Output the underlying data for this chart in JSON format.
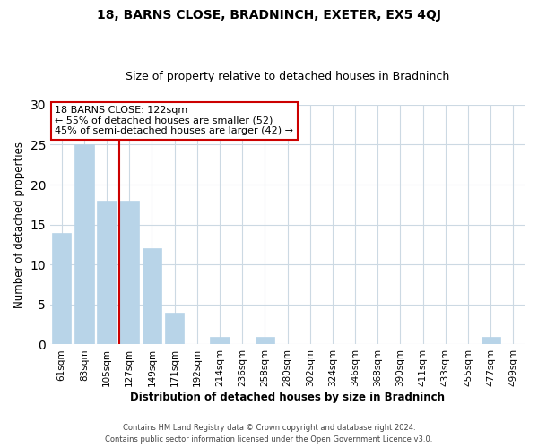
{
  "title": "18, BARNS CLOSE, BRADNINCH, EXETER, EX5 4QJ",
  "subtitle": "Size of property relative to detached houses in Bradninch",
  "xlabel": "Distribution of detached houses by size in Bradninch",
  "ylabel": "Number of detached properties",
  "footer_line1": "Contains HM Land Registry data © Crown copyright and database right 2024.",
  "footer_line2": "Contains public sector information licensed under the Open Government Licence v3.0.",
  "bin_labels": [
    "61sqm",
    "83sqm",
    "105sqm",
    "127sqm",
    "149sqm",
    "171sqm",
    "192sqm",
    "214sqm",
    "236sqm",
    "258sqm",
    "280sqm",
    "302sqm",
    "324sqm",
    "346sqm",
    "368sqm",
    "390sqm",
    "411sqm",
    "433sqm",
    "455sqm",
    "477sqm",
    "499sqm"
  ],
  "bar_values": [
    14,
    25,
    18,
    18,
    12,
    4,
    0,
    1,
    0,
    1,
    0,
    0,
    0,
    0,
    0,
    0,
    0,
    0,
    0,
    1,
    0
  ],
  "bar_color": "#b8d4e8",
  "bar_edge_color": "#b8d4e8",
  "marker_bin_index": 3,
  "marker_color": "#cc0000",
  "annotation_title": "18 BARNS CLOSE: 122sqm",
  "annotation_line1": "← 55% of detached houses are smaller (52)",
  "annotation_line2": "45% of semi-detached houses are larger (42) →",
  "ylim": [
    0,
    30
  ],
  "yticks": [
    0,
    5,
    10,
    15,
    20,
    25,
    30
  ],
  "background_color": "#ffffff",
  "grid_color": "#ccd9e3"
}
